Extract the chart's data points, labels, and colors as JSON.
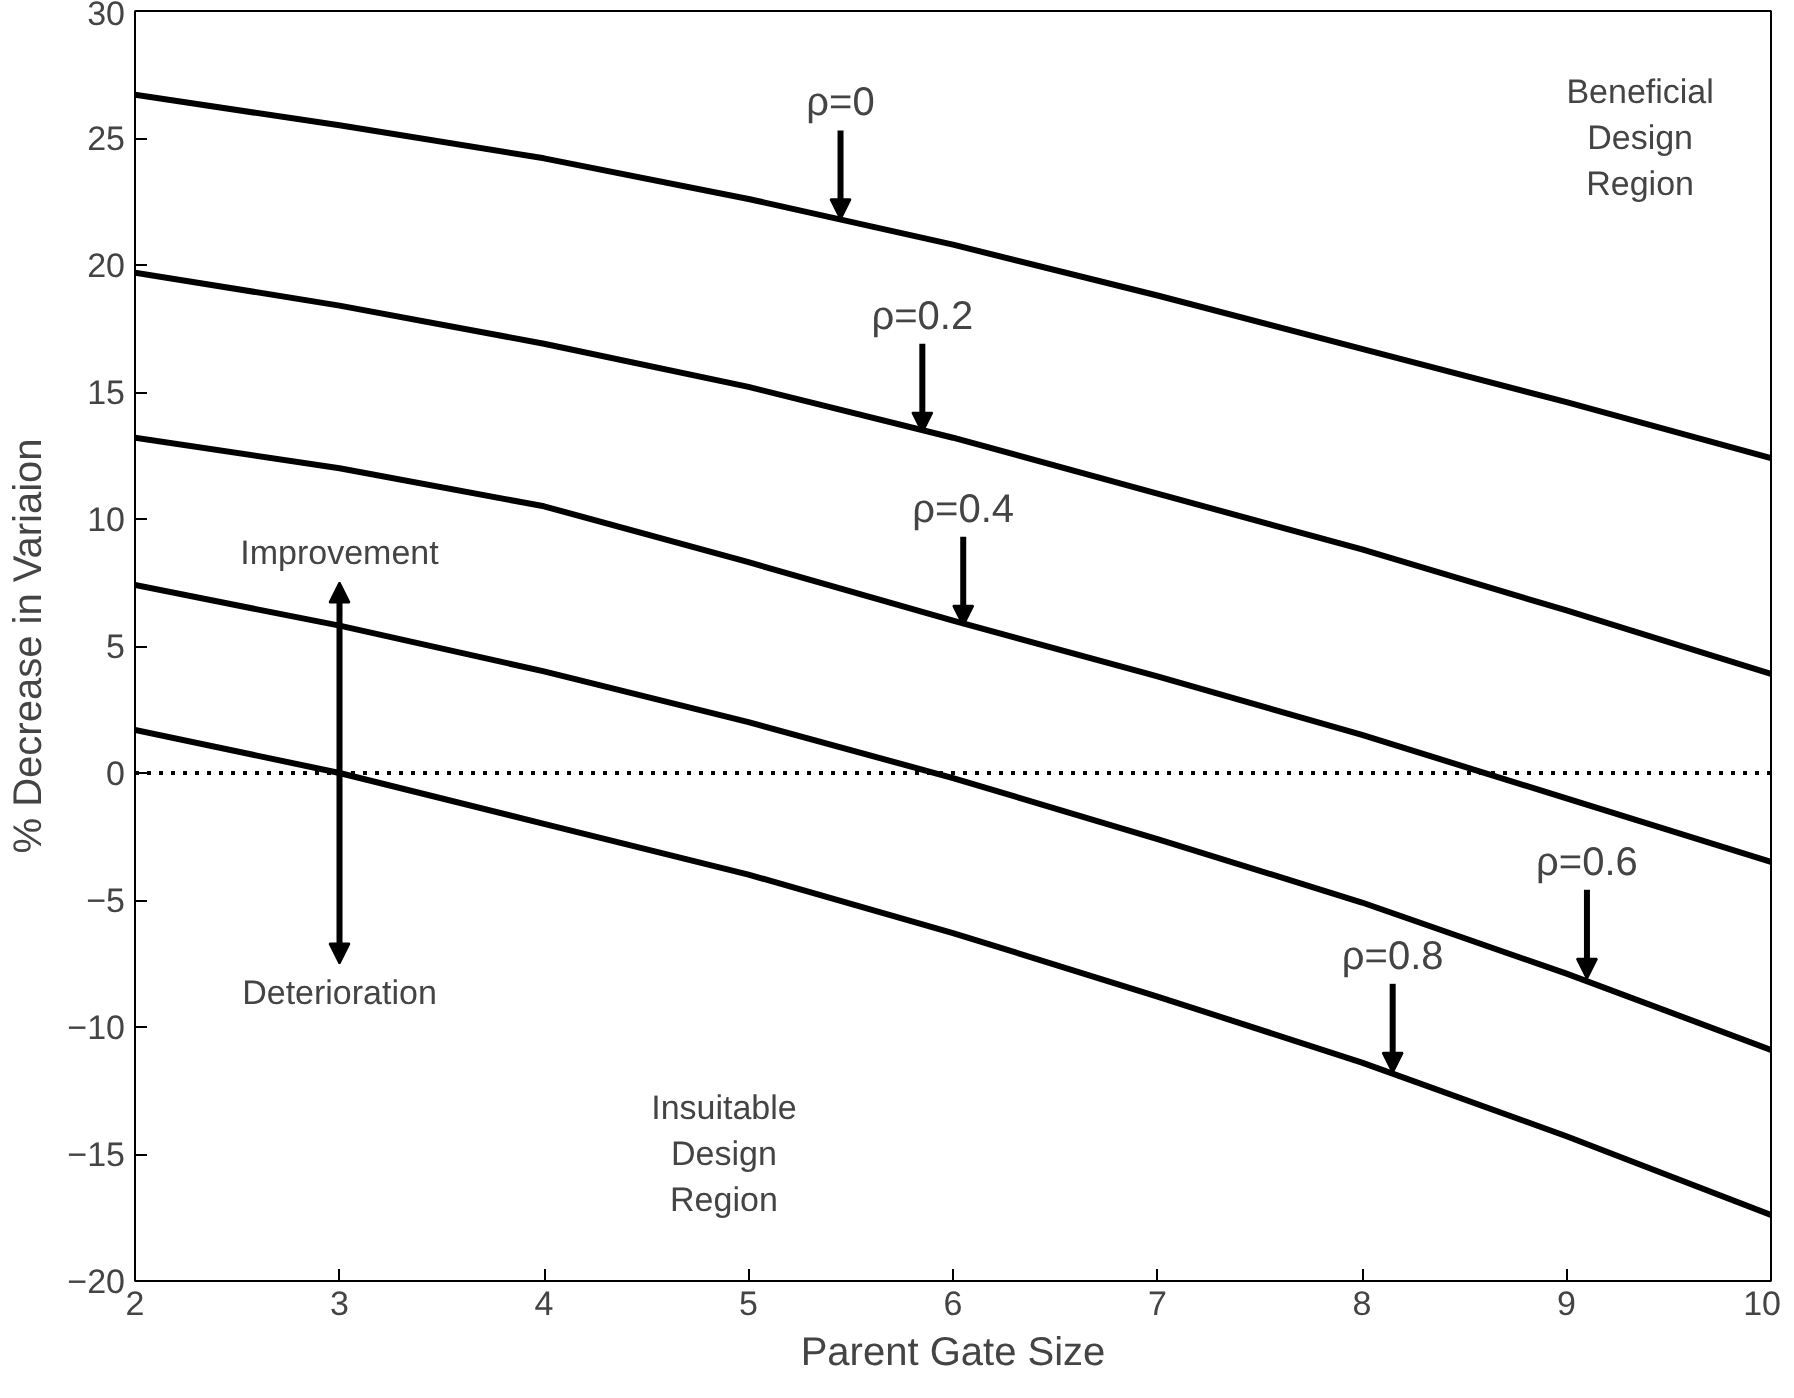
{
  "chart_data": {
    "type": "line",
    "xlabel": "Parent Gate Size",
    "ylabel": "% Decrease in Variaion",
    "x": [
      2,
      3,
      4,
      5,
      6,
      7,
      8,
      9,
      10
    ],
    "series": [
      {
        "color": "#000000",
        "values": [
          26.7,
          25.5,
          24.2,
          22.6,
          20.8,
          18.8,
          16.7,
          14.6,
          12.4
        ]
      },
      {
        "color": "#000000",
        "values": [
          19.7,
          18.4,
          16.9,
          15.2,
          13.2,
          11.0,
          8.8,
          6.4,
          3.9
        ]
      },
      {
        "color": "#000000",
        "values": [
          13.2,
          12.0,
          10.5,
          8.3,
          6.0,
          3.8,
          1.5,
          -1.0,
          -3.5
        ]
      },
      {
        "color": "#000000",
        "values": [
          7.4,
          5.8,
          4.0,
          2.0,
          -0.2,
          -2.6,
          -5.1,
          -7.9,
          -10.9
        ]
      },
      {
        "color": "#000000",
        "values": [
          1.7,
          0.0,
          -2.0,
          -4.0,
          -6.3,
          -8.8,
          -11.4,
          -14.3,
          -17.4
        ]
      }
    ],
    "xlim": [
      2,
      10
    ],
    "ylim": [
      -20,
      30
    ],
    "xticks": [
      2,
      3,
      4,
      5,
      6,
      7,
      8,
      9,
      10
    ],
    "yticks": [
      -20,
      -15,
      -10,
      -5,
      0,
      5,
      10,
      15,
      20,
      25,
      30
    ],
    "grid": false,
    "line_style": "solid",
    "marker": "none",
    "ref_lines": [
      {
        "axis": "y",
        "value": 0,
        "line_style": "dotted",
        "color": "#000000"
      }
    ],
    "annotations": [
      {
        "text": "ρ=0",
        "x": 5.45,
        "y": 21.8
      },
      {
        "text": "ρ=0.2",
        "x": 5.85,
        "y": 13.4
      },
      {
        "text": "ρ=0.4",
        "x": 6.05,
        "y": 5.8
      },
      {
        "text": "ρ=0.6",
        "x": 9.1,
        "y": -8.1
      },
      {
        "text": "ρ=0.8",
        "x": 8.15,
        "y": -11.8
      },
      "Improvement",
      "Deterioration",
      "Beneficial\nDesign\nRegion",
      "Insuitable\nDesign\nRegion"
    ]
  }
}
